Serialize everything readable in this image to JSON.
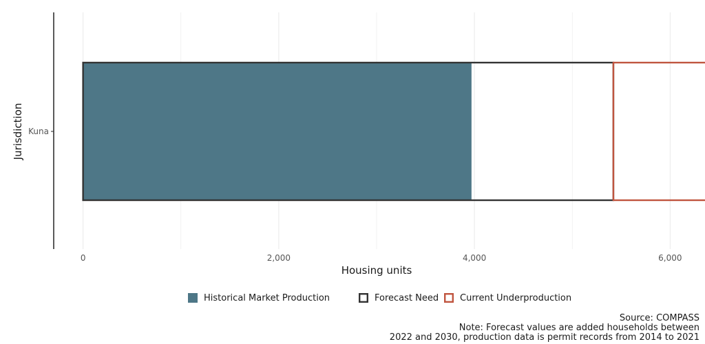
{
  "chart_data": {
    "type": "bar",
    "orientation": "horizontal",
    "categories": [
      "Kuna"
    ],
    "series": [
      {
        "name": "Historical Market Production",
        "values": [
          3970
        ]
      },
      {
        "name": "Forecast Need",
        "values": [
          5420
        ]
      },
      {
        "name": "Current Underproduction",
        "values": [
          1440
        ]
      }
    ],
    "xlabel": "Housing units",
    "ylabel": "Jurisdiction",
    "xlim": [
      -300,
      6300
    ],
    "x_ticks": [
      0,
      2000,
      4000,
      6000
    ],
    "x_tick_labels": [
      "0",
      "2,000",
      "4,000",
      "6,000"
    ],
    "grid": true,
    "legend_position": "bottom",
    "caption_lines": [
      "Source: COMPASS",
      "Note: Forecast values are added households between",
      "2022 and 2030, production data is permit records from 2014 to 2021"
    ],
    "colors": {
      "Historical Market Production": "#4e7787",
      "Forecast Need": "#333333",
      "Current Underproduction": "#c0553f",
      "grid": "#ebebeb"
    }
  }
}
